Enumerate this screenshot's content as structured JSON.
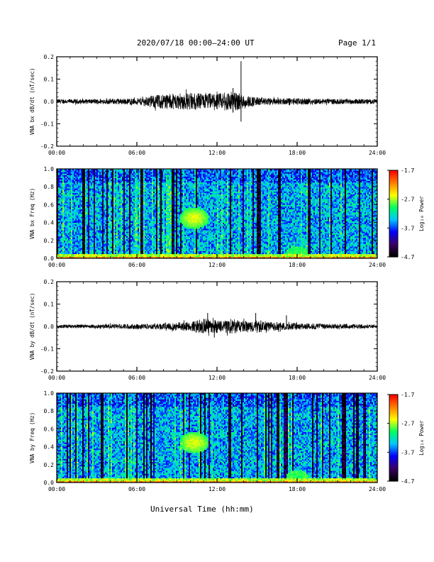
{
  "header": {
    "title": "2020/07/18  00:00–24:00 UT",
    "page": "Page 1/1"
  },
  "footer": {
    "xlabel": "Universal Time (hh:mm)"
  },
  "colors": {
    "trace": "#000000",
    "colormap": [
      "#000000",
      "#3b0066",
      "#0000ff",
      "#00c8ff",
      "#00ff60",
      "#ffff00",
      "#ff8000",
      "#ff0000"
    ]
  },
  "chart_data": [
    {
      "type": "line",
      "ylabel": "VNA bx dB/dt (nT/sec)",
      "xlim": [
        0,
        24
      ],
      "ylim": [
        -0.2,
        0.2
      ],
      "xticks": [
        "00:00",
        "06:00",
        "12:00",
        "18:00",
        "24:00"
      ],
      "yticks": [
        "-0.2",
        "-0.1",
        "0.0",
        "0.1",
        "0.2"
      ],
      "envelope": {
        "description_hours": [
          0,
          2,
          4,
          6,
          7,
          8,
          9,
          10,
          11,
          12,
          12.5,
          13,
          13.5,
          14,
          15,
          16,
          18,
          20,
          22,
          24
        ],
        "amplitude": [
          0.01,
          0.01,
          0.012,
          0.015,
          0.025,
          0.035,
          0.035,
          0.04,
          0.035,
          0.035,
          0.04,
          0.05,
          0.04,
          0.03,
          0.02,
          0.015,
          0.015,
          0.012,
          0.012,
          0.01
        ]
      },
      "spikes": [
        {
          "x": 13.8,
          "y": 0.18
        },
        {
          "x": 13.8,
          "y": -0.09
        },
        {
          "x": 13.2,
          "y": 0.06
        },
        {
          "x": 13.2,
          "y": -0.05
        }
      ]
    },
    {
      "type": "heatmap",
      "ylabel": "VNA bx Freq (Hz)",
      "xlim": [
        0,
        24
      ],
      "ylim": [
        0,
        1.0
      ],
      "xticks": [
        "00:00",
        "06:00",
        "12:00",
        "18:00",
        "24:00"
      ],
      "yticks": [
        "0.0",
        "0.2",
        "0.4",
        "0.6",
        "0.8",
        "1.0"
      ],
      "colorbar": {
        "label": "Log₁₀ Power",
        "range": [
          -4.7,
          -1.7
        ],
        "ticks": [
          "-1.7",
          "-2.7",
          "-3.7",
          "-4.7"
        ]
      }
    },
    {
      "type": "line",
      "ylabel": "VNA by dB/dt (nT/sec)",
      "xlim": [
        0,
        24
      ],
      "ylim": [
        -0.2,
        0.2
      ],
      "xticks": [
        "00:00",
        "06:00",
        "12:00",
        "18:00",
        "24:00"
      ],
      "yticks": [
        "-0.2",
        "-0.1",
        "0.0",
        "0.1",
        "0.2"
      ],
      "envelope": {
        "description_hours": [
          0,
          2,
          4,
          6,
          7,
          8,
          9,
          10,
          11,
          12,
          12.5,
          13,
          13.5,
          14,
          15,
          16,
          18,
          20,
          22,
          24
        ],
        "amplitude": [
          0.008,
          0.008,
          0.01,
          0.012,
          0.012,
          0.015,
          0.02,
          0.02,
          0.035,
          0.03,
          0.025,
          0.035,
          0.03,
          0.025,
          0.03,
          0.02,
          0.015,
          0.012,
          0.01,
          0.008
        ]
      },
      "spikes": [
        {
          "x": 11.3,
          "y": 0.06
        },
        {
          "x": 11.8,
          "y": -0.05
        },
        {
          "x": 14.9,
          "y": 0.06
        },
        {
          "x": 17.2,
          "y": 0.05
        }
      ]
    },
    {
      "type": "heatmap",
      "ylabel": "VNA by Freq (Hz)",
      "xlim": [
        0,
        24
      ],
      "ylim": [
        0,
        1.0
      ],
      "xticks": [
        "00:00",
        "06:00",
        "12:00",
        "18:00",
        "24:00"
      ],
      "yticks": [
        "0.0",
        "0.2",
        "0.4",
        "0.6",
        "0.8",
        "1.0"
      ],
      "colorbar": {
        "label": "Log₁₀ Power",
        "range": [
          -4.7,
          -1.7
        ],
        "ticks": [
          "-1.7",
          "-2.7",
          "-3.7",
          "-4.7"
        ]
      }
    }
  ]
}
